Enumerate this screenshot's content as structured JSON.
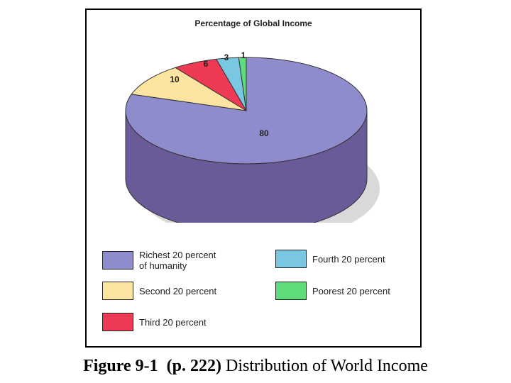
{
  "chart_data": {
    "type": "pie",
    "title": "Percentage of Global Income",
    "categories": [
      "Richest 20 percent of humanity",
      "Second 20 percent",
      "Third 20 percent",
      "Fourth 20 percent",
      "Poorest 20 percent"
    ],
    "values": [
      80,
      10,
      6,
      3,
      1
    ],
    "data_labels": [
      "80",
      "10",
      "6",
      "3",
      "1"
    ],
    "colors": [
      "#8e8ccc",
      "#fde4a0",
      "#ee3a55",
      "#79c7e0",
      "#5edb7a"
    ],
    "side_colors": [
      "#6a5a98",
      "#c9b07a",
      "#b02a40",
      "#5a9ab0",
      "#3fa858"
    ],
    "legend": [
      {
        "lines": [
          "Richest 20 percent",
          "of humanity"
        ],
        "color": "#8e8ccc"
      },
      {
        "lines": [
          "Fourth 20 percent"
        ],
        "color": "#79c7e0"
      },
      {
        "lines": [
          "Second 20 percent"
        ],
        "color": "#fde4a0"
      },
      {
        "lines": [
          "Poorest 20 percent"
        ],
        "color": "#5edb7a"
      },
      {
        "lines": [
          "Third 20 percent"
        ],
        "color": "#ee3a55"
      }
    ]
  },
  "caption": {
    "figure": "Figure 9-1",
    "page": "(p. 222)",
    "text": "Distribution of World Income"
  }
}
